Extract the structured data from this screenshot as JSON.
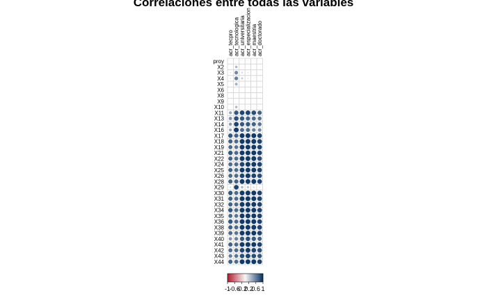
{
  "chart_data": {
    "type": "heatmap",
    "title": "Correlaciones entre todas las variables",
    "columns": [
      "acr_tecpro",
      "acr_tecnologica",
      "acr_universitaria",
      "acr_especializacion",
      "acr_maestria",
      "acr_doctorado"
    ],
    "rows": [
      "proy",
      "X2",
      "X3",
      "X4",
      "X5",
      "X6",
      "X8",
      "X9",
      "X10",
      "X11",
      "X13",
      "X14",
      "X16",
      "X17",
      "X18",
      "X19",
      "X21",
      "X22",
      "X24",
      "X25",
      "X26",
      "X28",
      "X29",
      "X30",
      "X31",
      "X32",
      "X34",
      "X35",
      "X36",
      "X38",
      "X39",
      "X40",
      "X41",
      "X42",
      "X43",
      "X44"
    ],
    "values": [
      [
        0.0,
        0.0,
        0.0,
        0.0,
        0.0,
        0.0
      ],
      [
        0.0,
        0.3,
        0.0,
        0.0,
        0.0,
        0.0
      ],
      [
        0.1,
        0.55,
        0.15,
        0.1,
        0.0,
        0.0
      ],
      [
        0.1,
        0.6,
        0.2,
        0.1,
        0.05,
        0.0
      ],
      [
        0.05,
        0.35,
        0.05,
        0.0,
        0.0,
        0.0
      ],
      [
        0.0,
        0.05,
        0.0,
        0.0,
        0.0,
        0.0
      ],
      [
        0.0,
        0.0,
        0.0,
        0.0,
        0.0,
        0.0
      ],
      [
        0.0,
        0.0,
        0.0,
        0.0,
        0.0,
        0.0
      ],
      [
        0.0,
        0.3,
        0.0,
        0.0,
        0.0,
        0.0
      ],
      [
        0.4,
        0.8,
        0.9,
        0.9,
        0.85,
        0.75
      ],
      [
        0.5,
        0.85,
        0.8,
        0.75,
        0.7,
        0.65
      ],
      [
        0.45,
        0.9,
        0.8,
        0.8,
        0.75,
        0.65
      ],
      [
        0.4,
        0.95,
        0.7,
        0.7,
        0.6,
        0.55
      ],
      [
        0.8,
        0.75,
        0.95,
        0.95,
        0.95,
        0.9
      ],
      [
        0.75,
        0.7,
        0.95,
        0.95,
        0.95,
        0.9
      ],
      [
        0.7,
        0.65,
        0.95,
        0.95,
        0.95,
        0.9
      ],
      [
        0.8,
        0.7,
        0.95,
        0.95,
        0.95,
        0.9
      ],
      [
        0.75,
        0.7,
        0.95,
        0.95,
        0.95,
        0.85
      ],
      [
        0.7,
        0.7,
        0.9,
        0.95,
        0.95,
        0.9
      ],
      [
        0.75,
        0.7,
        0.95,
        0.95,
        0.95,
        0.9
      ],
      [
        0.7,
        0.7,
        0.9,
        0.95,
        0.9,
        0.85
      ],
      [
        0.75,
        0.75,
        0.95,
        0.95,
        0.95,
        0.9
      ],
      [
        0.15,
        0.9,
        0.3,
        0.25,
        0.15,
        0.1
      ],
      [
        0.8,
        0.7,
        0.95,
        0.95,
        0.95,
        0.9
      ],
      [
        0.75,
        0.7,
        0.95,
        0.95,
        0.95,
        0.9
      ],
      [
        0.75,
        0.7,
        0.95,
        0.95,
        0.95,
        0.9
      ],
      [
        0.8,
        0.7,
        0.95,
        0.95,
        0.95,
        0.9
      ],
      [
        0.7,
        0.65,
        0.95,
        0.95,
        0.95,
        0.9
      ],
      [
        0.8,
        0.7,
        0.95,
        0.95,
        0.95,
        0.9
      ],
      [
        0.75,
        0.7,
        0.95,
        0.95,
        0.95,
        0.9
      ],
      [
        0.7,
        0.65,
        0.95,
        0.95,
        0.95,
        0.9
      ],
      [
        0.5,
        0.6,
        0.8,
        0.85,
        0.8,
        0.75
      ],
      [
        0.75,
        0.7,
        0.95,
        0.95,
        0.95,
        0.9
      ],
      [
        0.7,
        0.7,
        0.9,
        0.95,
        0.9,
        0.85
      ],
      [
        0.6,
        0.65,
        0.85,
        0.9,
        0.85,
        0.8
      ],
      [
        0.75,
        0.7,
        0.95,
        0.95,
        0.95,
        0.9
      ]
    ],
    "colorbar": {
      "range": [
        -1,
        1
      ],
      "tick_labels": [
        "-1",
        "-0.6",
        "-0.2",
        "0.2",
        "0.6",
        "1"
      ]
    },
    "colors": {
      "negative": "#b2182b",
      "neutral": "#f7f7f7",
      "positive": "#053061",
      "grid": "#d4d4d4"
    }
  }
}
